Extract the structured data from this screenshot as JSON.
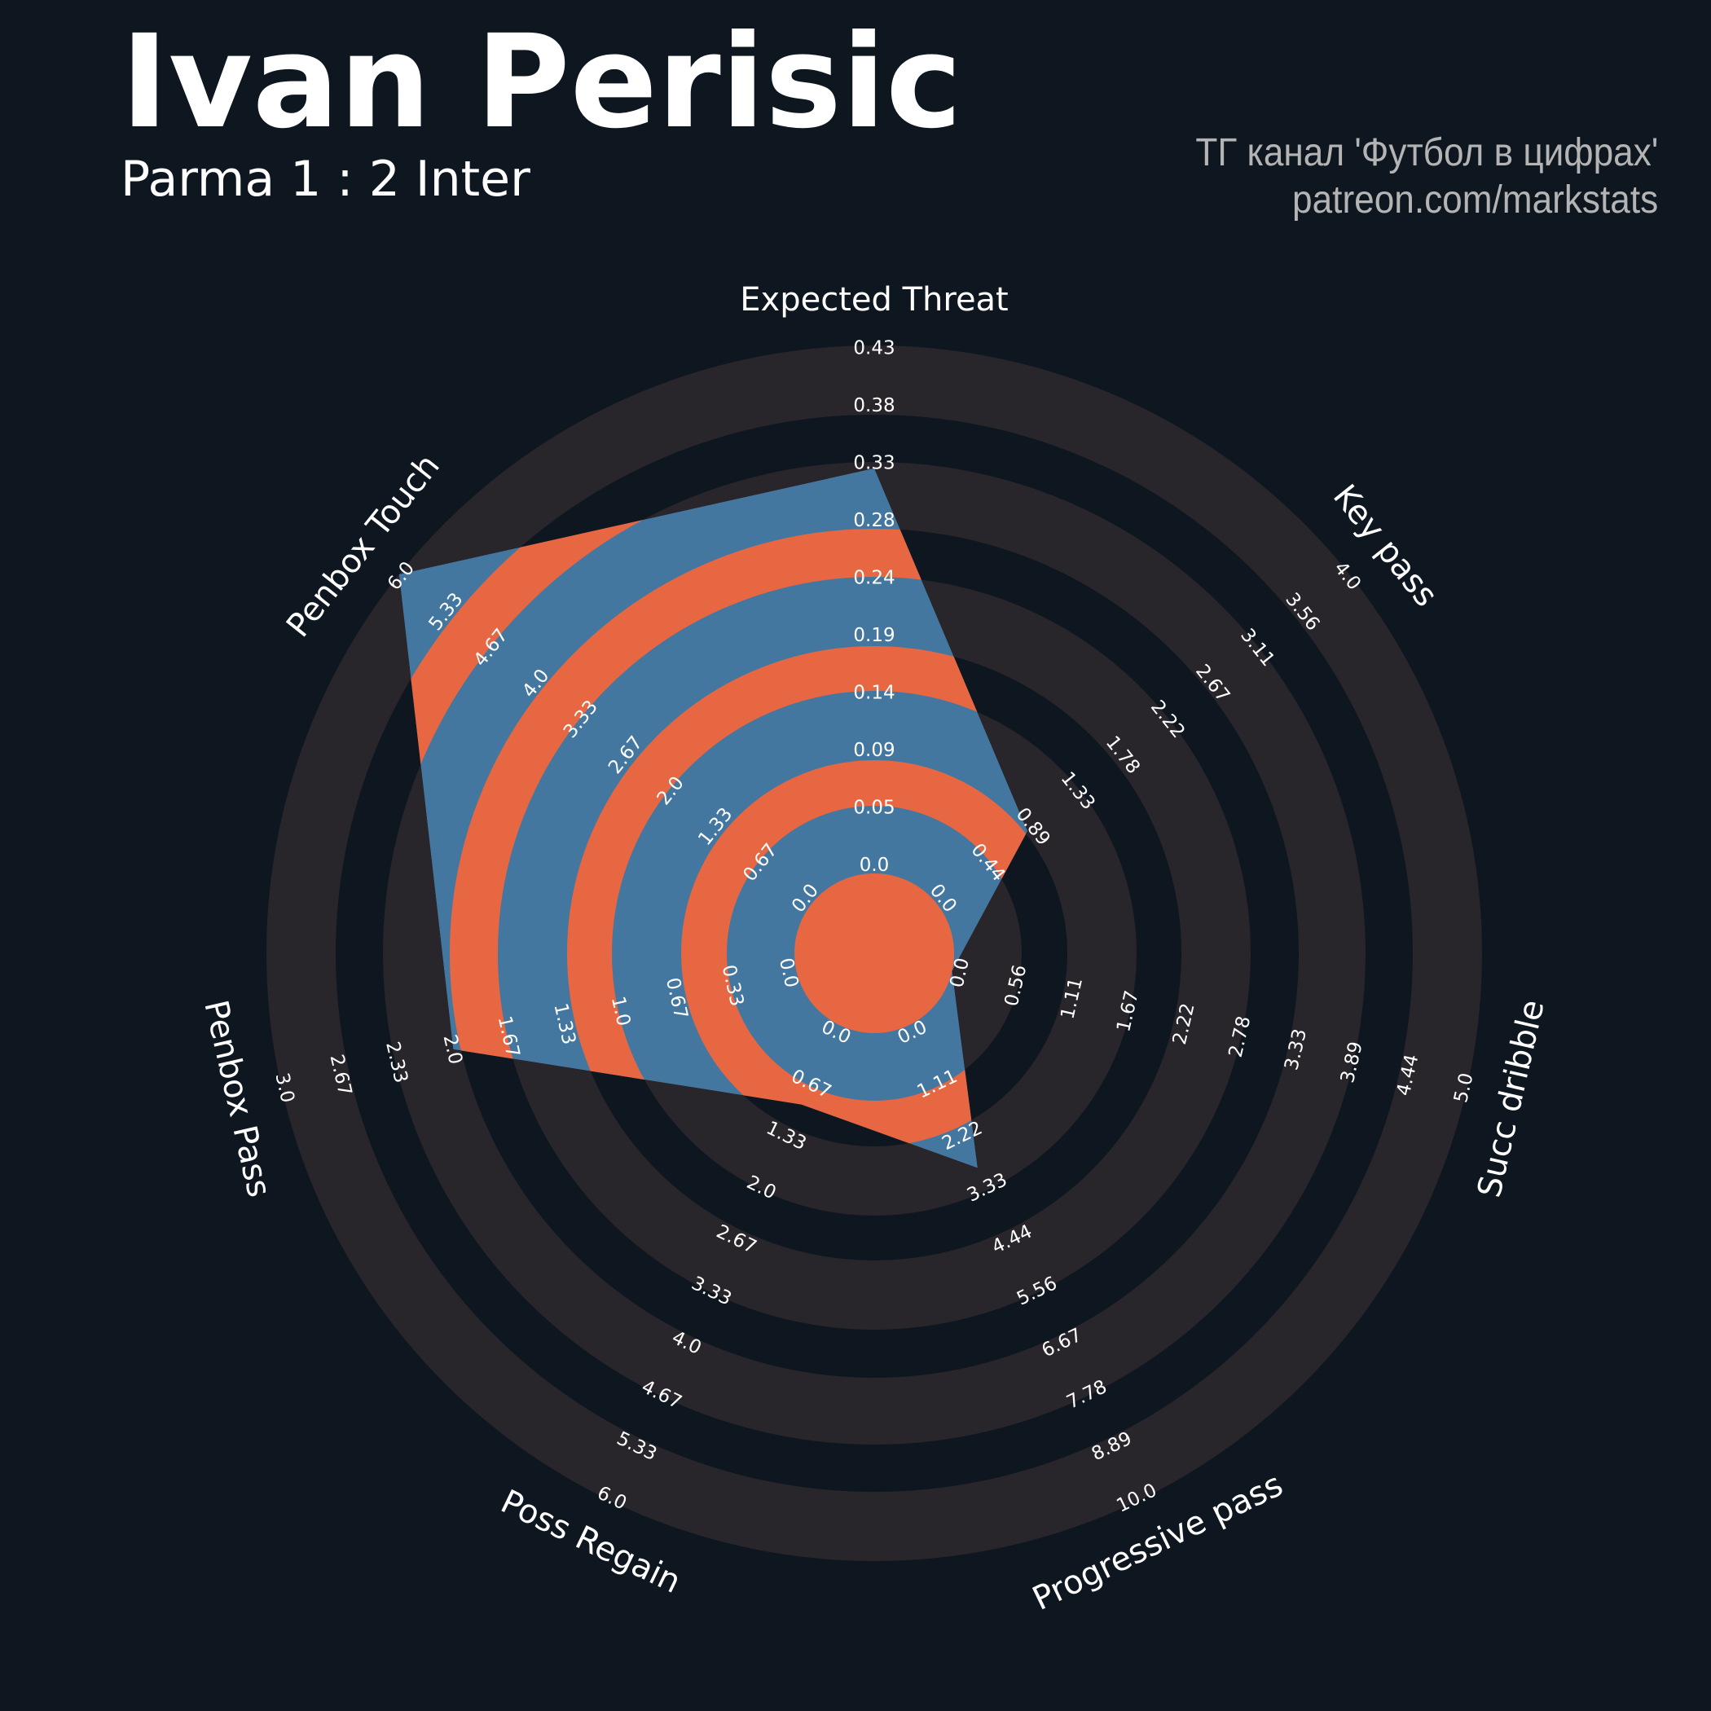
{
  "header": {
    "title": "Ivan Perisic",
    "subtitle": "Parma 1 : 2 Inter",
    "credit_line1": "ТГ канал 'Футбол в цифрах'",
    "credit_line2": "patreon.com/markstats"
  },
  "colors": {
    "background": "#0e1720",
    "ring_light": "#28252b",
    "radar_fill": "#4477a0",
    "radar_ring": "#e76742",
    "text": "#ffffff",
    "credit_text": "#b4b4b4"
  },
  "chart_data": {
    "type": "radar",
    "params": [
      "Expected Threat",
      "Key pass",
      "Succ dribble",
      "Progressive pass",
      "Poss Regain",
      "Penbox Pass",
      "Penbox Touch"
    ],
    "values": [
      0.33,
      0.88,
      0.0,
      3.0,
      1.0,
      2.0,
      6.0
    ],
    "min": [
      0,
      0,
      0,
      0,
      0,
      0,
      0
    ],
    "max": [
      0.43,
      4.0,
      5.0,
      10.0,
      6.0,
      3.0,
      6.0
    ],
    "tick_labels": [
      [
        "0.0",
        "0.05",
        "0.09",
        "0.14",
        "0.19",
        "0.24",
        "0.28",
        "0.33",
        "0.38",
        "0.43"
      ],
      [
        "0.0",
        "0.44",
        "0.89",
        "1.33",
        "1.78",
        "2.22",
        "2.67",
        "3.11",
        "3.56",
        "4.0"
      ],
      [
        "0.0",
        "0.56",
        "1.11",
        "1.67",
        "2.22",
        "2.78",
        "3.33",
        "3.89",
        "4.44",
        "5.0"
      ],
      [
        "0.0",
        "1.11",
        "2.22",
        "3.33",
        "4.44",
        "5.56",
        "6.67",
        "7.78",
        "8.89",
        "10.0"
      ],
      [
        "0.0",
        "0.67",
        "1.33",
        "2.0",
        "2.67",
        "3.33",
        "4.0",
        "4.67",
        "5.33",
        "6.0"
      ],
      [
        "0.0",
        "0.33",
        "0.67",
        "1.0",
        "1.33",
        "1.67",
        "2.0",
        "2.33",
        "2.67",
        "3.0"
      ],
      [
        "0.0",
        "0.67",
        "1.33",
        "2.0",
        "2.67",
        "3.33",
        "4.0",
        "4.67",
        "5.33",
        "6.0"
      ]
    ]
  }
}
